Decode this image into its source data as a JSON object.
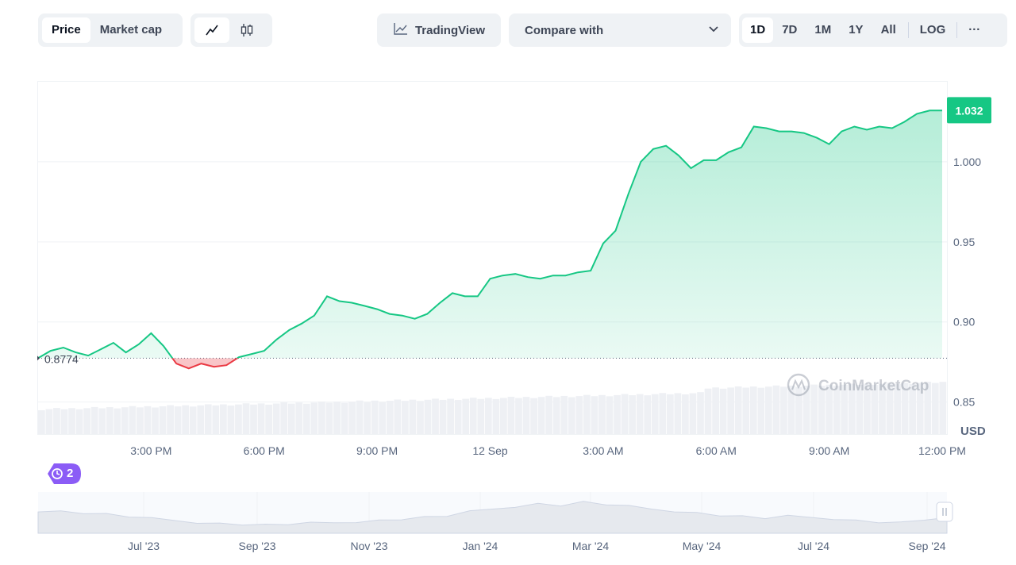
{
  "toolbar": {
    "price_tab": "Price",
    "market_cap_tab": "Market cap",
    "line_chart_icon": "line-chart-icon",
    "candlestick_icon": "candlestick-icon",
    "tradingview_label": "TradingView",
    "compare_label": "Compare with",
    "ranges": [
      "1D",
      "7D",
      "1M",
      "1Y",
      "All"
    ],
    "active_range": "1D",
    "log_label": "LOG",
    "more_label": "···"
  },
  "chart": {
    "current_price": "1.032",
    "start_price": "0.8774",
    "currency": "USD",
    "watermark": "CoinMarketCap",
    "history_badge": "2",
    "up_color": "#16c784",
    "down_color": "#ea3943"
  },
  "navigator": {
    "labels": [
      "Jul '23",
      "Sep '23",
      "Nov '23",
      "Jan '24",
      "Mar '24",
      "May '24",
      "Jul '24",
      "Sep '24"
    ]
  },
  "chart_data": {
    "type": "area",
    "baseline": 0.8774,
    "ylim": [
      0.83,
      1.05
    ],
    "yticks": [
      "0.85",
      "0.90",
      "0.95",
      "1.000"
    ],
    "xticks": [
      "3:00 PM",
      "6:00 PM",
      "9:00 PM",
      "12 Sep",
      "3:00 AM",
      "6:00 AM",
      "9:00 AM",
      "12:00 PM"
    ],
    "x_hours": [
      0,
      0.33,
      0.67,
      1.0,
      1.33,
      1.67,
      2.0,
      2.33,
      2.67,
      3.0,
      3.33,
      3.67,
      4.0,
      4.33,
      4.67,
      5.0,
      5.33,
      5.67,
      6.0,
      6.33,
      6.67,
      7.0,
      7.33,
      7.67,
      8.0,
      8.33,
      8.67,
      9.0,
      9.33,
      9.67,
      10.0,
      10.33,
      10.67,
      11.0,
      11.33,
      11.67,
      12.0,
      12.33,
      12.67,
      13.0,
      13.33,
      13.67,
      14.0,
      14.33,
      14.67,
      15.0,
      15.33,
      15.67,
      16.0,
      16.33,
      16.67,
      17.0,
      17.33,
      17.67,
      18.0,
      18.33,
      18.67,
      19.0,
      19.33,
      19.67,
      20.0,
      20.33,
      20.67,
      21.0,
      21.33,
      21.67,
      22.0,
      22.33,
      22.67,
      23.0,
      23.33,
      23.67,
      24.0
    ],
    "prices": [
      0.8774,
      0.882,
      0.884,
      0.881,
      0.879,
      0.883,
      0.887,
      0.881,
      0.886,
      0.893,
      0.885,
      0.874,
      0.871,
      0.874,
      0.872,
      0.873,
      0.878,
      0.88,
      0.882,
      0.889,
      0.895,
      0.899,
      0.904,
      0.916,
      0.913,
      0.912,
      0.91,
      0.908,
      0.905,
      0.904,
      0.902,
      0.905,
      0.912,
      0.918,
      0.916,
      0.916,
      0.927,
      0.929,
      0.93,
      0.928,
      0.927,
      0.929,
      0.929,
      0.931,
      0.932,
      0.949,
      0.957,
      0.98,
      1.0,
      1.008,
      1.01,
      1.004,
      0.996,
      1.001,
      1.001,
      1.006,
      1.009,
      1.022,
      1.021,
      1.019,
      1.019,
      1.018,
      1.015,
      1.011,
      1.019,
      1.022,
      1.02,
      1.022,
      1.021,
      1.025,
      1.03,
      1.032,
      1.032
    ],
    "volume_bars": 120
  }
}
